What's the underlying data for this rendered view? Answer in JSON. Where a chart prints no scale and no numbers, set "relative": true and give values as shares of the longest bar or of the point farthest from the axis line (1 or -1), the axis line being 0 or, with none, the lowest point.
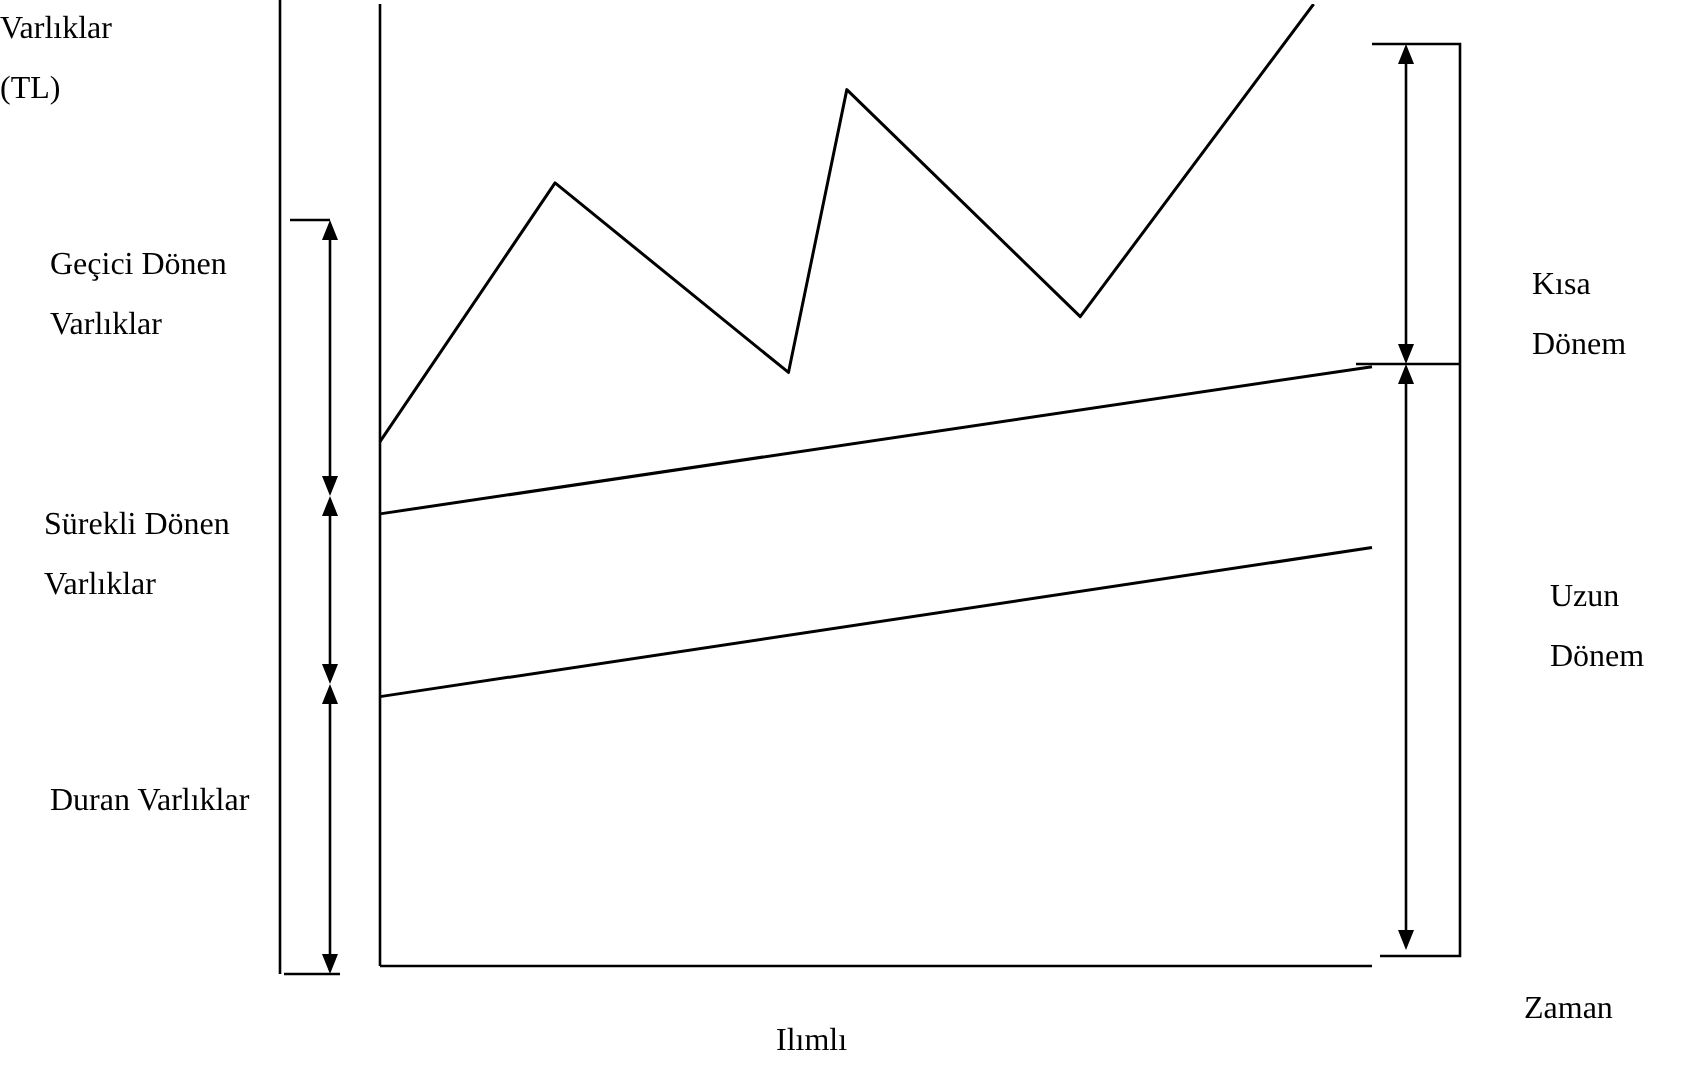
{
  "chart_data": {
    "type": "line",
    "title": "Ilımlı",
    "relative": true,
    "categories": [
      null,
      null,
      null,
      null,
      null,
      null,
      null,
      null,
      null,
      null,
      null,
      null,
      null,
      null,
      null,
      null,
      null,
      null
    ],
    "series": [
      {
        "color": "#000000",
        "values": [
          0.545,
          null,
          null,
          0.814,
          null,
          null,
          null,
          0.617,
          0.911,
          null,
          null,
          null,
          0.675,
          null,
          null,
          null,
          1.0,
          null
        ]
      },
      {
        "color": "#000000",
        "values": [
          0.47,
          null,
          null,
          null,
          null,
          null,
          null,
          null,
          null,
          null,
          null,
          null,
          null,
          null,
          null,
          null,
          null,
          0.623
        ]
      },
      {
        "color": "#000000",
        "values": [
          0.28,
          null,
          null,
          null,
          null,
          null,
          null,
          null,
          null,
          null,
          null,
          null,
          null,
          null,
          null,
          null,
          null,
          0.435
        ]
      }
    ],
    "annotations": [
      "Varlıklar (TL)",
      "Geçici Dönen Varlıklar",
      "Sürekli Dönen Varlıklar",
      "Duran Varlıklar",
      "Kısa Dönem",
      "Uzun Dönem",
      "Zaman"
    ],
    "legend": false,
    "grid": false
  }
}
